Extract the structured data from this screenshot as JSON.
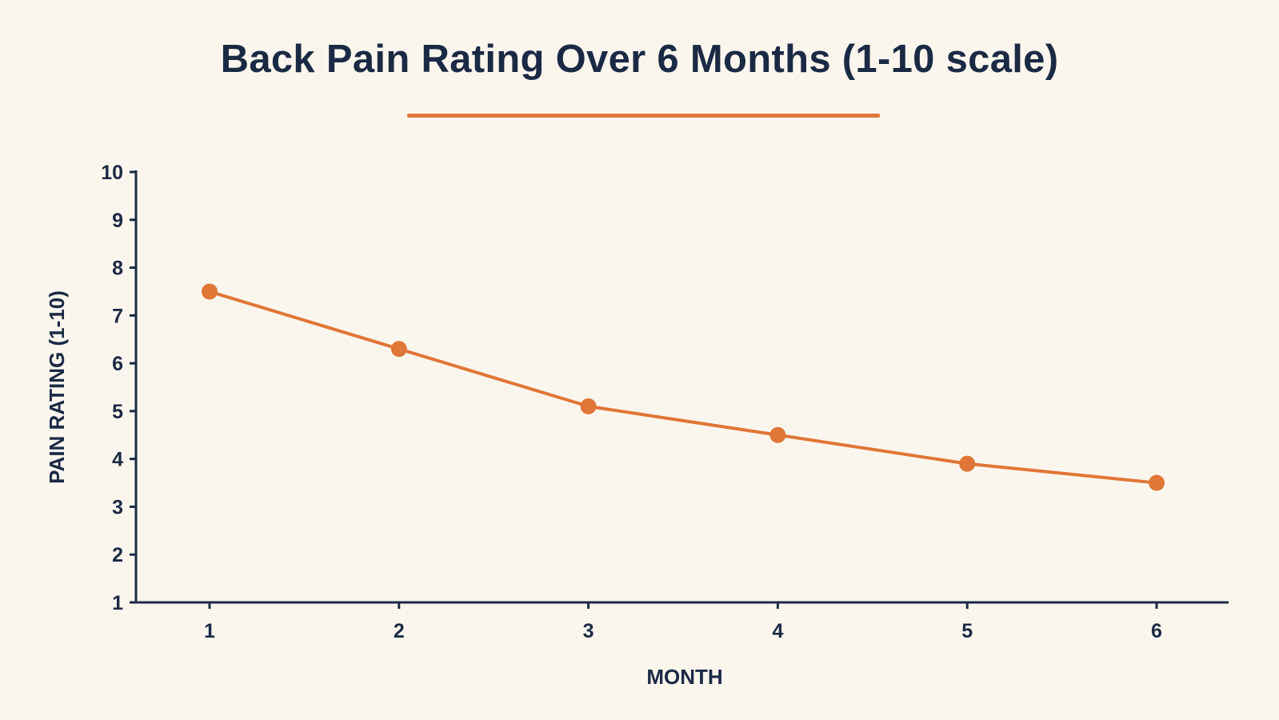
{
  "title": "Back Pain Rating Over 6 Months (1-10 scale)",
  "colors": {
    "background": "#faf6ee",
    "text": "#1b2a44",
    "axis": "#1b2a44",
    "accent": "#e07637"
  },
  "chart_data": {
    "type": "line",
    "title": "Back Pain Rating Over 6 Months (1-10 scale)",
    "xlabel": "MONTH",
    "ylabel": "PAIN RATING (1-10)",
    "x": [
      1,
      2,
      3,
      4,
      5,
      6
    ],
    "x_tick_labels": [
      "1",
      "2",
      "3",
      "4",
      "5",
      "6"
    ],
    "y_ticks": [
      1,
      2,
      3,
      4,
      5,
      6,
      7,
      8,
      9,
      10
    ],
    "y_tick_labels": [
      "1",
      "2",
      "3",
      "4",
      "5",
      "6",
      "7",
      "8",
      "9",
      "10"
    ],
    "ylim": [
      1,
      10
    ],
    "grid": false,
    "legend": "none",
    "series": [
      {
        "values": [
          7.5,
          6.3,
          5.1,
          4.5,
          3.9,
          3.5
        ],
        "color": "#e07637",
        "marker": "circle"
      }
    ]
  }
}
